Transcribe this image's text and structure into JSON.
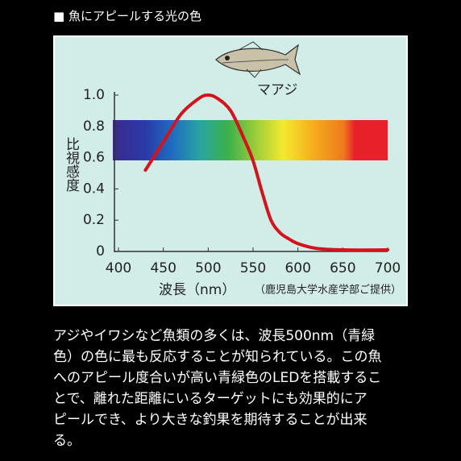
{
  "header": {
    "title": "■ 魚にアピールする光の色"
  },
  "chart_data": {
    "type": "line",
    "ylabel": "比視感度",
    "xlabel": "波長（nm）",
    "note": "（鹿児島大学水産学部ご提供）",
    "x": [
      430,
      450,
      470,
      490,
      500,
      510,
      525,
      540,
      550,
      560,
      570,
      580,
      590,
      600,
      620,
      650,
      700
    ],
    "series": [
      {
        "name": "マアジ",
        "color": "#d4141c",
        "values": [
          0.52,
          0.7,
          0.88,
          0.98,
          1.0,
          0.98,
          0.9,
          0.72,
          0.58,
          0.38,
          0.2,
          0.12,
          0.08,
          0.05,
          0.02,
          0.01,
          0.01
        ]
      }
    ],
    "xlim": [
      400,
      700
    ],
    "xticks": [
      400,
      450,
      500,
      550,
      600,
      650,
      700
    ],
    "ylim": [
      0,
      1
    ],
    "yticks": [
      0,
      0.2,
      0.4,
      0.6,
      0.8,
      {
        "value": 1,
        "label": "1.0"
      }
    ],
    "grid": false
  },
  "body": {
    "lines": [
      "アジやイワシなど魚類の多くは、波長500nm（青緑",
      "色）の色に最も反応することが知られている。この魚",
      "へのアピール度合いが高い青緑色のLEDを搭載するこ",
      "とで、離れた距離にいるターゲットにも効果的にア",
      "ピールでき、より大きな釣果を期待することが出来",
      "る。"
    ]
  }
}
